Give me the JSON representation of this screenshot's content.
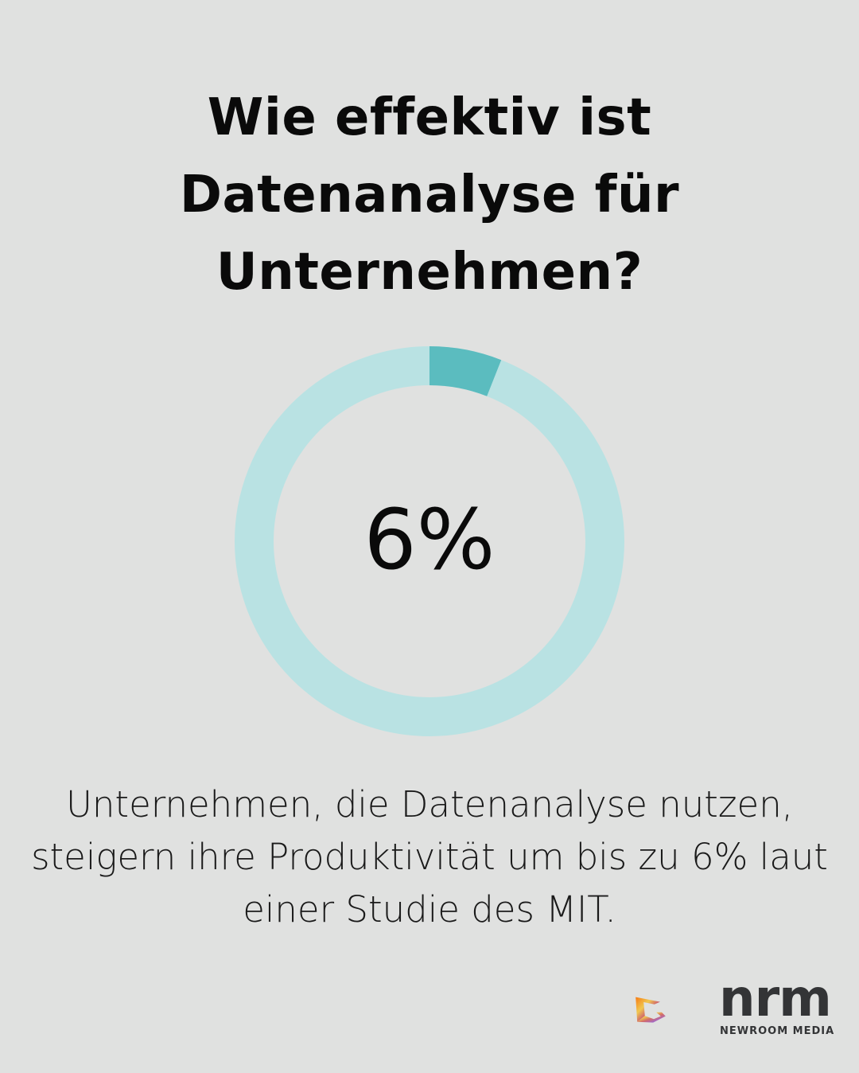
{
  "title_lines": [
    "Wie effektiv ist",
    "Datenanalyse für",
    "Unternehmen?"
  ],
  "chart_data": {
    "type": "pie",
    "variant": "donut",
    "values": [
      6,
      94
    ],
    "center_label": "6%",
    "colors": {
      "highlight": "#5bbcbf",
      "remainder": "#b9e2e3"
    }
  },
  "description_lines": [
    "Unternehmen, die Datenanalyse nutzen,",
    "steigern ihre Produktivität um bis zu 6% laut",
    "einer Studie des MIT."
  ],
  "logo": {
    "name": "nrm",
    "tagline": "NEWROOM MEDIA"
  },
  "colors": {
    "background": "#e0e1e0",
    "text": "#0a0a0a"
  }
}
